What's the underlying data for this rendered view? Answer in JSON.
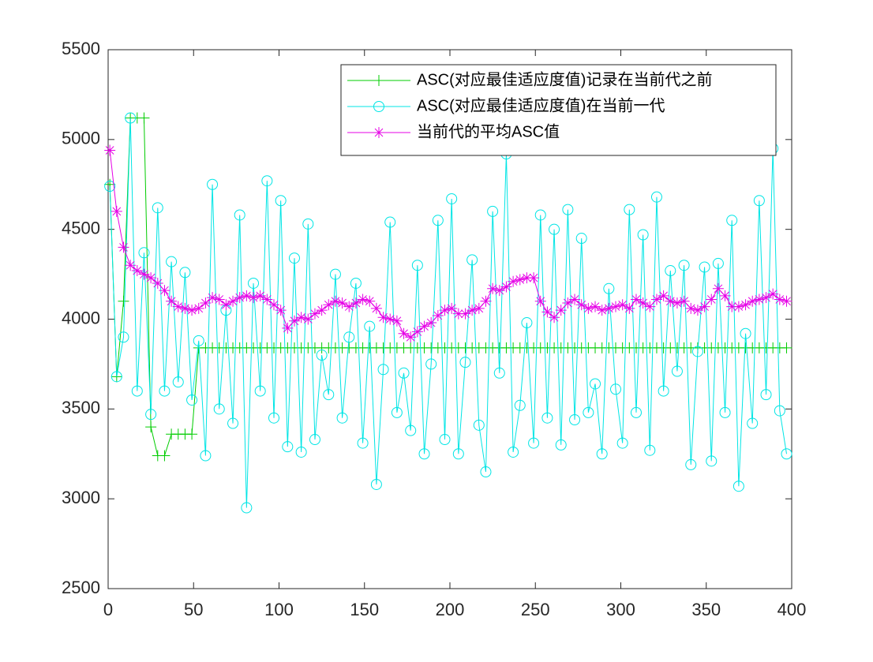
{
  "chart_data": {
    "type": "line",
    "x": [
      1,
      5,
      9,
      13,
      17,
      21,
      25,
      29,
      33,
      37,
      41,
      45,
      49,
      53,
      57,
      61,
      65,
      69,
      73,
      77,
      81,
      85,
      89,
      93,
      97,
      101,
      105,
      109,
      113,
      117,
      121,
      125,
      129,
      133,
      137,
      141,
      145,
      149,
      153,
      157,
      161,
      165,
      169,
      173,
      177,
      181,
      185,
      189,
      193,
      197,
      201,
      205,
      209,
      213,
      217,
      221,
      225,
      229,
      233,
      237,
      241,
      245,
      249,
      253,
      257,
      261,
      265,
      269,
      273,
      277,
      281,
      285,
      289,
      293,
      297,
      301,
      305,
      309,
      313,
      317,
      321,
      325,
      329,
      333,
      337,
      341,
      345,
      349,
      353,
      357,
      361,
      365,
      369,
      373,
      377,
      381,
      385,
      389,
      393,
      397
    ],
    "series": [
      {
        "name": "ASC(对应最佳适应度值)记录在当前代之前",
        "color": "#00cc00",
        "marker": "plus",
        "values": [
          4750,
          3680,
          4100,
          5120,
          5120,
          5120,
          3400,
          3240,
          3240,
          3360,
          3360,
          3360,
          3360,
          3840,
          3840,
          3840,
          3840,
          3840,
          3840,
          3840,
          3840,
          3840,
          3840,
          3840,
          3840,
          3840,
          3840,
          3840,
          3840,
          3840,
          3840,
          3840,
          3840,
          3840,
          3840,
          3840,
          3840,
          3840,
          3840,
          3840,
          3840,
          3840,
          3840,
          3840,
          3840,
          3840,
          3840,
          3840,
          3840,
          3840,
          3840,
          3840,
          3840,
          3840,
          3840,
          3840,
          3840,
          3840,
          3840,
          3840,
          3840,
          3840,
          3840,
          3840,
          3840,
          3840,
          3840,
          3840,
          3840,
          3840,
          3840,
          3840,
          3840,
          3840,
          3840,
          3840,
          3840,
          3840,
          3840,
          3840,
          3840,
          3840,
          3840,
          3840,
          3840,
          3840,
          3840,
          3840,
          3840,
          3840,
          3840,
          3840,
          3840,
          3840,
          3840,
          3840,
          3840,
          3840,
          3840,
          3840
        ]
      },
      {
        "name": "ASC(对应最佳适应度值)在当前一代",
        "color": "#00e5e5",
        "marker": "circle",
        "values": [
          4740,
          3680,
          3900,
          5120,
          3600,
          4370,
          3470,
          4620,
          3600,
          4320,
          3650,
          4260,
          3550,
          3880,
          3240,
          4750,
          3500,
          4050,
          3420,
          4580,
          2950,
          4200,
          3600,
          4770,
          3450,
          4660,
          3290,
          4340,
          3260,
          4530,
          3330,
          3800,
          3580,
          4250,
          3450,
          3900,
          4200,
          3310,
          3960,
          3080,
          3720,
          4540,
          3480,
          3700,
          3380,
          4300,
          3250,
          3750,
          4550,
          3330,
          4670,
          3250,
          3760,
          4330,
          3410,
          3150,
          4600,
          3700,
          4920,
          3260,
          3520,
          3980,
          3310,
          4580,
          3450,
          4500,
          3300,
          4610,
          3440,
          4450,
          3480,
          3640,
          3250,
          4170,
          3610,
          3310,
          4610,
          3480,
          4470,
          3270,
          4680,
          3600,
          4270,
          3710,
          4300,
          3190,
          3820,
          4290,
          3210,
          4310,
          3480,
          4550,
          3070,
          3920,
          3420,
          4660,
          3580,
          4950,
          3490,
          3250
        ]
      },
      {
        "name": "当前代的平均ASC值",
        "color": "#e600e6",
        "marker": "star",
        "values": [
          4940,
          4600,
          4400,
          4300,
          4270,
          4250,
          4230,
          4200,
          4160,
          4100,
          4070,
          4060,
          4050,
          4060,
          4090,
          4120,
          4110,
          4080,
          4100,
          4120,
          4130,
          4120,
          4130,
          4110,
          4080,
          4050,
          3950,
          3990,
          4010,
          4000,
          4030,
          4050,
          4080,
          4100,
          4090,
          4070,
          4090,
          4110,
          4100,
          4060,
          4010,
          4000,
          3990,
          3920,
          3900,
          3930,
          3960,
          3980,
          4020,
          4050,
          4060,
          4030,
          4030,
          4050,
          4060,
          4100,
          4170,
          4160,
          4180,
          4210,
          4220,
          4230,
          4230,
          4100,
          4040,
          4010,
          4050,
          4090,
          4110,
          4080,
          4060,
          4070,
          4050,
          4060,
          4070,
          4080,
          4060,
          4110,
          4090,
          4070,
          4110,
          4130,
          4100,
          4090,
          4100,
          4060,
          4050,
          4070,
          4110,
          4170,
          4130,
          4070,
          4070,
          4080,
          4100,
          4110,
          4120,
          4140,
          4110,
          4100
        ]
      }
    ],
    "xlim": [
      0,
      400
    ],
    "xticks": [
      0,
      50,
      100,
      150,
      200,
      250,
      300,
      350,
      400
    ],
    "ylim": [
      2500,
      5500
    ],
    "yticks": [
      2500,
      3000,
      3500,
      4000,
      4500,
      5000,
      5500
    ],
    "legend": "upper right"
  }
}
